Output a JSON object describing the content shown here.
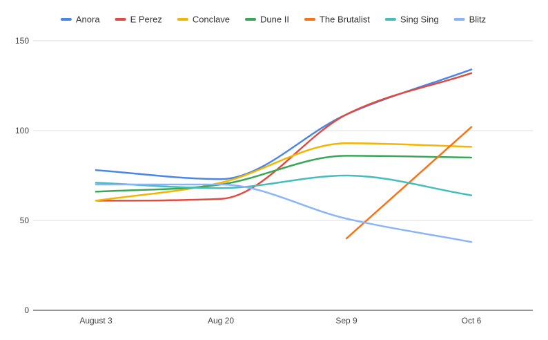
{
  "chart_data": {
    "type": "line",
    "title": "",
    "xlabel": "",
    "ylabel": "",
    "categories": [
      "August 3",
      "Aug 20",
      "Sep 9",
      "Oct 6"
    ],
    "ylim": [
      0,
      150
    ],
    "yticks": [
      0,
      50,
      100,
      150
    ],
    "grid": true,
    "smooth": true,
    "legend_position": "top",
    "series": [
      {
        "name": "Anora",
        "color": "#4a86e8",
        "values": [
          78,
          73,
          109,
          134
        ]
      },
      {
        "name": "E Perez",
        "color": "#e04a3f",
        "values": [
          61,
          62,
          109,
          132
        ]
      },
      {
        "name": "Conclave",
        "color": "#f4b400",
        "values": [
          61,
          71,
          93,
          91
        ]
      },
      {
        "name": "Dune II",
        "color": "#3aa757",
        "values": [
          66,
          70,
          86,
          85
        ]
      },
      {
        "name": "The Brutalist",
        "color": "#f97316",
        "values": [
          null,
          null,
          40,
          102
        ]
      },
      {
        "name": "Sing Sing",
        "color": "#45bdbd",
        "values": [
          71,
          68,
          75,
          64
        ]
      },
      {
        "name": "Blitz",
        "color": "#8ab4f8",
        "values": [
          70,
          70,
          51,
          38
        ]
      }
    ]
  }
}
